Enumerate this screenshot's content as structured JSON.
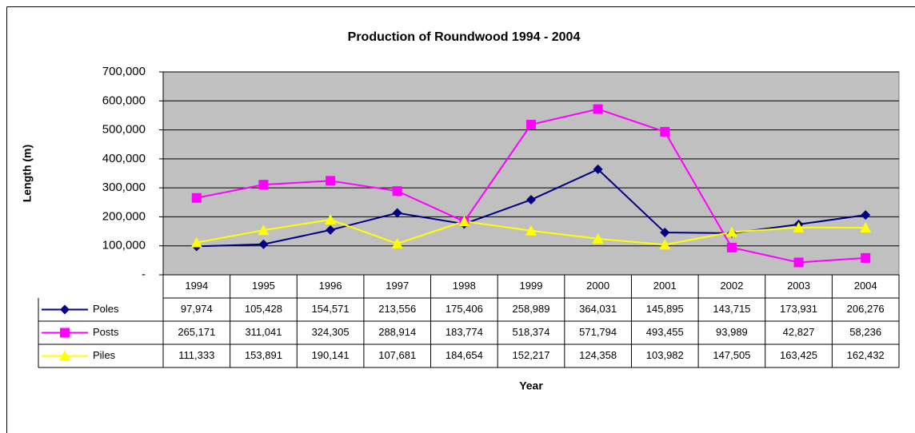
{
  "chart_data": {
    "type": "line",
    "title": "Production of Roundwood 1994 - 2004",
    "x_label": "Year",
    "y_label": "Length (m)",
    "categories": [
      "1994",
      "1995",
      "1996",
      "1997",
      "1998",
      "1999",
      "2000",
      "2001",
      "2002",
      "2003",
      "2004"
    ],
    "series": [
      {
        "name": "Poles",
        "color": "#000080",
        "marker": "diamond",
        "values": [
          97974,
          105428,
          154571,
          213556,
          175406,
          258989,
          364031,
          145895,
          143715,
          173931,
          206276
        ],
        "value_labels": [
          "97,974",
          "105,428",
          "154,571",
          "213,556",
          "175,406",
          "258,989",
          "364,031",
          "145,895",
          "143,715",
          "173,931",
          "206,276"
        ]
      },
      {
        "name": "Posts",
        "color": "#ff00ff",
        "marker": "square",
        "values": [
          265171,
          311041,
          324305,
          288914,
          183774,
          518374,
          571794,
          493455,
          93989,
          42827,
          58236
        ],
        "value_labels": [
          "265,171",
          "311,041",
          "324,305",
          "288,914",
          "183,774",
          "518,374",
          "571,794",
          "493,455",
          "93,989",
          "42,827",
          "58,236"
        ]
      },
      {
        "name": "Piles",
        "color": "#ffff00",
        "marker": "triangle",
        "values": [
          111333,
          153891,
          190141,
          107681,
          184654,
          152217,
          124358,
          103982,
          147505,
          163425,
          162432
        ],
        "value_labels": [
          "111,333",
          "153,891",
          "190,141",
          "107,681",
          "184,654",
          "152,217",
          "124,358",
          "103,982",
          "147,505",
          "163,425",
          "162,432"
        ]
      }
    ],
    "ylim": [
      0,
      700000
    ],
    "yticks": [
      {
        "value": 0,
        "label": "-"
      },
      {
        "value": 100000,
        "label": "100,000"
      },
      {
        "value": 200000,
        "label": "200,000"
      },
      {
        "value": 300000,
        "label": "300,000"
      },
      {
        "value": 400000,
        "label": "400,000"
      },
      {
        "value": 500000,
        "label": "500,000"
      },
      {
        "value": 600000,
        "label": "600,000"
      },
      {
        "value": 700000,
        "label": "700,000"
      }
    ],
    "grid": true,
    "plot_background": "#c0c0c0"
  }
}
